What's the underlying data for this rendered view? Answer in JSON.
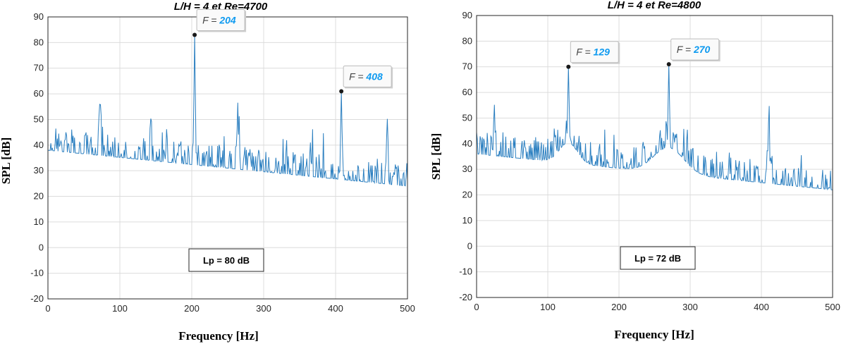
{
  "colors": {
    "line": "#2b7fc0",
    "grid": "#dcdcdc",
    "tip_value": "#0e9af0",
    "axis": "#262626"
  },
  "chart_data": [
    {
      "type": "line",
      "title": "L/H = 4  et Re=4700",
      "xlabel": "Frequency [Hz]",
      "ylabel": "SPL [dB]",
      "xlim": [
        0,
        500
      ],
      "ylim": [
        -20,
        90
      ],
      "xticks": [
        0,
        100,
        200,
        300,
        400,
        500
      ],
      "yticks": [
        -20,
        -10,
        0,
        10,
        20,
        30,
        40,
        50,
        60,
        70,
        80,
        90
      ],
      "grid": true,
      "baseline_mean": 32,
      "peaks": [
        {
          "x": 204,
          "y": 83,
          "label_prefix": "F = ",
          "label_value": "204"
        },
        {
          "x": 408,
          "y": 61,
          "label_prefix": "F = ",
          "label_value": "408"
        }
      ],
      "secondary_peaks": [
        {
          "x": 72,
          "y": 55
        },
        {
          "x": 143,
          "y": 55
        },
        {
          "x": 265,
          "y": 53
        },
        {
          "x": 472,
          "y": 45
        }
      ],
      "annotation": "Lp = 80 dB"
    },
    {
      "type": "line",
      "title": "L/H = 4  et Re=4800",
      "xlabel": "Frequency [Hz]",
      "ylabel": "SPL [dB]",
      "xlim": [
        0,
        500
      ],
      "ylim": [
        -20,
        90
      ],
      "xticks": [
        0,
        100,
        200,
        300,
        400,
        500
      ],
      "yticks": [
        -20,
        -10,
        0,
        10,
        20,
        30,
        40,
        50,
        60,
        70,
        80,
        90
      ],
      "grid": true,
      "baseline_mean": 30,
      "peaks": [
        {
          "x": 129,
          "y": 70,
          "label_prefix": "F = ",
          "label_value": "129"
        },
        {
          "x": 270,
          "y": 71,
          "label_prefix": "F = ",
          "label_value": "270"
        }
      ],
      "secondary_peaks": [
        {
          "x": 25,
          "y": 51
        },
        {
          "x": 410,
          "y": 51
        }
      ],
      "annotation": "Lp = 72 dB"
    }
  ]
}
